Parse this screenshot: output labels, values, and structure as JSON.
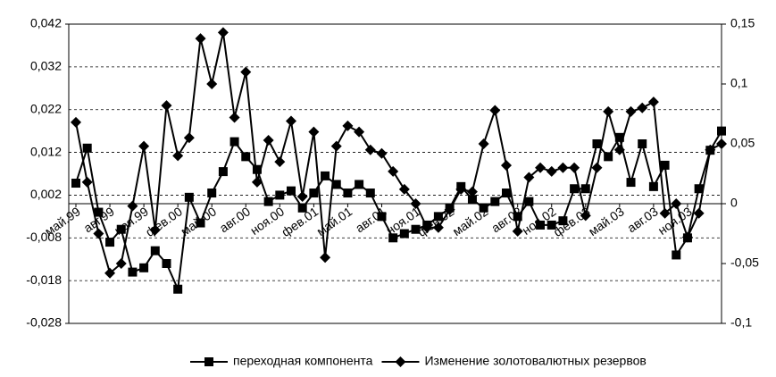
{
  "chart_data": {
    "type": "line",
    "categories": [
      "май.99",
      null,
      null,
      "авг.99",
      null,
      null,
      "ноя.99",
      null,
      null,
      "фев.00",
      null,
      null,
      "май.00",
      null,
      null,
      "авг.00",
      null,
      null,
      "ноя.00",
      null,
      null,
      "фев.01",
      null,
      null,
      "май.01",
      null,
      null,
      "авг.01",
      null,
      null,
      "ноя.01",
      null,
      null,
      "фев.02",
      null,
      null,
      "май.02",
      null,
      null,
      "авг.02",
      null,
      null,
      "ноя.02",
      null,
      null,
      "фев.03",
      null,
      null,
      "май.03",
      null,
      null,
      "авг.03",
      null,
      null,
      "ноя.03",
      null,
      null,
      null
    ],
    "series": [
      {
        "name": "переходная компонента",
        "color": "#000000",
        "marker": "square",
        "values": [
          0.0048,
          0.013,
          -0.002,
          -0.009,
          -0.006,
          -0.016,
          -0.015,
          -0.011,
          -0.014,
          -0.02,
          0.0015,
          -0.0045,
          0.0025,
          0.0075,
          0.0145,
          0.011,
          0.008,
          0.0005,
          0.002,
          0.003,
          -0.001,
          0.0025,
          0.0065,
          0.0045,
          0.0025,
          0.0045,
          0.0025,
          -0.003,
          -0.008,
          -0.007,
          -0.006,
          -0.005,
          -0.003,
          -0.001,
          0.004,
          0.001,
          -0.001,
          0.0005,
          0.0025,
          -0.003,
          0.0005,
          -0.005,
          -0.005,
          -0.004,
          0.0035,
          0.0035,
          0.014,
          0.011,
          0.0155,
          0.005,
          0.014,
          0.004,
          0.009,
          -0.012,
          -0.008,
          0.0035,
          0.0125,
          0.017
        ]
      },
      {
        "name": "Изменение золотовалютных резервов",
        "color": "#000000",
        "marker": "diamond",
        "axis": "y2",
        "values": [
          0.068,
          0.018,
          -0.025,
          -0.058,
          -0.05,
          -0.002,
          0.048,
          -0.022,
          0.082,
          0.04,
          0.055,
          0.138,
          0.1,
          0.143,
          0.072,
          0.11,
          0.018,
          0.053,
          0.035,
          0.069,
          0.006,
          0.06,
          -0.045,
          0.048,
          0.065,
          0.06,
          0.045,
          0.042,
          0.027,
          0.012,
          0.0,
          -0.02,
          -0.02,
          -0.005,
          0.012,
          0.01,
          0.05,
          0.078,
          0.032,
          -0.023,
          0.022,
          0.03,
          0.027,
          0.03,
          0.03,
          -0.01,
          0.03,
          0.077,
          0.045,
          0.077,
          0.08,
          0.085,
          -0.008,
          0.0,
          -0.028,
          -0.008,
          0.045,
          0.05
        ]
      }
    ],
    "ylim": [
      -0.028,
      0.042
    ],
    "yticks": [
      {
        "value": -0.028,
        "label": "-0,028"
      },
      {
        "value": -0.018,
        "label": "-0,018"
      },
      {
        "value": -0.008,
        "label": "-0,008"
      },
      {
        "value": 0.002,
        "label": "0,002"
      },
      {
        "value": 0.012,
        "label": "0,012"
      },
      {
        "value": 0.022,
        "label": "0,022"
      },
      {
        "value": 0.032,
        "label": "0,032"
      },
      {
        "value": 0.042,
        "label": "0,042"
      }
    ],
    "y2lim": [
      -0.1,
      0.15
    ],
    "y2ticks": [
      {
        "value": -0.1,
        "label": "-0,1"
      },
      {
        "value": -0.05,
        "label": "-0,05"
      },
      0,
      {
        "value": 0.05,
        "label": "0,05"
      },
      {
        "value": 0.1,
        "label": "0,1"
      },
      {
        "value": 0.15,
        "label": "0,15"
      }
    ],
    "grid": true,
    "legend": "bottom"
  }
}
